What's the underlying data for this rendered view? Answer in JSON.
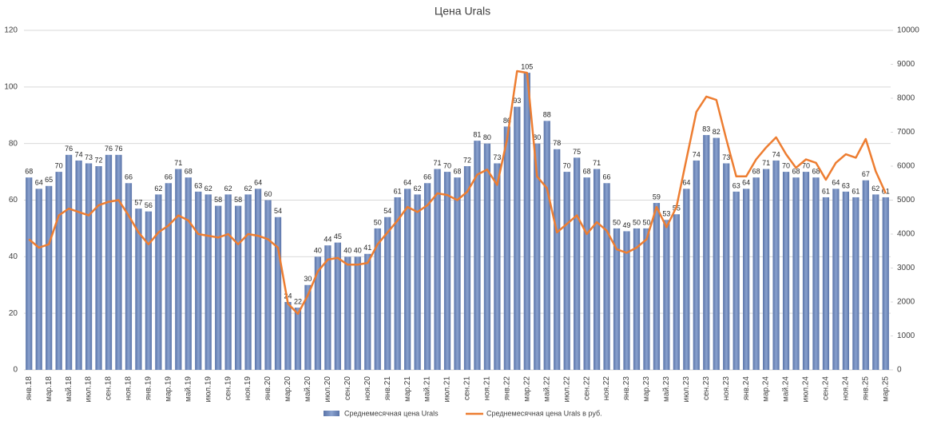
{
  "chart_data": {
    "type": "bar_line",
    "title": "Цена Urals",
    "categories": [
      "янв.18",
      null,
      "мар.18",
      null,
      "май.18",
      null,
      "июл.18",
      null,
      "сен.18",
      null,
      "ноя.18",
      null,
      "янв.19",
      null,
      "мар.19",
      null,
      "май.19",
      null,
      "июл.19",
      null,
      "сен.19",
      null,
      "ноя.19",
      null,
      "янв.20",
      null,
      "мар.20",
      null,
      "май.20",
      null,
      "июл.20",
      null,
      "сен.20",
      null,
      "ноя.20",
      null,
      "янв.21",
      null,
      "мар.21",
      null,
      "май.21",
      null,
      "июл.21",
      null,
      "сен.21",
      null,
      "ноя.21",
      null,
      "янв.22",
      null,
      "мар.22",
      null,
      "май.22",
      null,
      "июл.22",
      null,
      "сен.22",
      null,
      "ноя.22",
      null,
      "янв.23",
      null,
      "мар.23",
      null,
      "май.23",
      null,
      "июл.23",
      null,
      "сен.23",
      null,
      "ноя.23",
      null,
      "янв.24",
      null,
      "мар.24",
      null,
      "май.24",
      null,
      "июл.24",
      null,
      "сен.24",
      null,
      "ноя.24",
      null,
      "янв.25",
      null,
      "мар.25"
    ],
    "series": [
      {
        "name": "Среднемесячная цена Urals",
        "type": "bar",
        "color": "#6f88bb",
        "axis": "y",
        "values": [
          68,
          64,
          65,
          70,
          76,
          74,
          73,
          72,
          76,
          76,
          66,
          57,
          56,
          62,
          66,
          71,
          68,
          63,
          62,
          58,
          62,
          58,
          62,
          64,
          60,
          54,
          24,
          22,
          30,
          40,
          44,
          45,
          40,
          40,
          41,
          50,
          54,
          61,
          64,
          62,
          66,
          71,
          70,
          68,
          72,
          81,
          80,
          73,
          86,
          93,
          105,
          80,
          88,
          78,
          70,
          75,
          68,
          71,
          66,
          50,
          49,
          50,
          50,
          59,
          53,
          55,
          64,
          74,
          83,
          82,
          73,
          63,
          64,
          68,
          71,
          74,
          70,
          68,
          70,
          68,
          61,
          64,
          63,
          61,
          67,
          62,
          61
        ]
      },
      {
        "name": "Среднемесячная цена Urals в руб.",
        "type": "line",
        "color": "#ed7d31",
        "axis": "y2",
        "values": [
          3850,
          3600,
          3700,
          4550,
          4750,
          4650,
          4550,
          4850,
          4950,
          5000,
          4550,
          4050,
          3700,
          4050,
          4250,
          4550,
          4400,
          4000,
          3950,
          3900,
          4000,
          3700,
          4000,
          3950,
          3850,
          3600,
          1950,
          1650,
          2200,
          2900,
          3250,
          3300,
          3100,
          3100,
          3150,
          3700,
          4050,
          4400,
          4800,
          4650,
          4850,
          5200,
          5150,
          5000,
          5250,
          5750,
          5900,
          5450,
          6800,
          8800,
          8750,
          5700,
          5350,
          4050,
          4300,
          4550,
          4000,
          4350,
          4100,
          3550,
          3450,
          3600,
          3850,
          4800,
          4200,
          4800,
          6200,
          7600,
          8050,
          7950,
          6800,
          5700,
          5700,
          6200,
          6550,
          6850,
          6350,
          5950,
          6200,
          6100,
          5600,
          6100,
          6350,
          6250,
          6800,
          5850,
          5200
        ]
      }
    ],
    "ylim": [
      0,
      120
    ],
    "yticks": [
      0,
      20,
      40,
      60,
      80,
      100,
      120
    ],
    "y2lim": [
      0,
      10000
    ],
    "y2ticks": [
      0,
      1000,
      2000,
      3000,
      4000,
      5000,
      6000,
      7000,
      8000,
      9000,
      10000
    ],
    "legend": "bottom"
  }
}
